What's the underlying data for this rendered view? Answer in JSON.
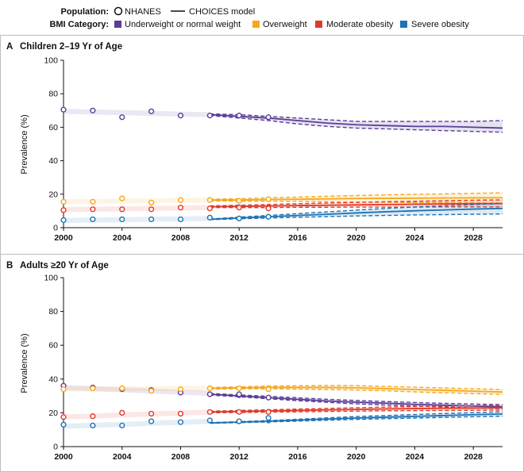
{
  "legend": {
    "population_label": "Population:",
    "nhanes_label": "NHANES",
    "model_label": "CHOICES model",
    "bmi_label": "BMI Category:",
    "categories": [
      {
        "name": "Underweight or normal weight",
        "color": "#5b3d99"
      },
      {
        "name": "Overweight",
        "color": "#f6a81c"
      },
      {
        "name": "Moderate obesity",
        "color": "#df3a2b"
      },
      {
        "name": "Severe obesity",
        "color": "#1f72b3"
      }
    ]
  },
  "chart_data": [
    {
      "type": "line",
      "panel": "A",
      "title": "Children 2–19 Yr of Age",
      "ylabel": "Prevalence (%)",
      "xlabel": "",
      "xlim": [
        2000,
        2030
      ],
      "ylim": [
        0,
        100
      ],
      "xticks": [
        2000,
        2004,
        2008,
        2012,
        2016,
        2020,
        2024,
        2028
      ],
      "yticks": [
        0,
        20,
        40,
        60,
        80,
        100
      ],
      "series": [
        {
          "name": "Underweight or normal weight",
          "color": "#5b3d99",
          "nhanes_x": [
            2000,
            2002,
            2004,
            2006,
            2008,
            2010,
            2012,
            2014
          ],
          "nhanes_y": [
            70.5,
            70,
            66,
            69.5,
            67,
            67,
            67,
            66
          ],
          "model_x": [
            2010,
            2012,
            2014,
            2016,
            2018,
            2020,
            2022,
            2024,
            2026,
            2028,
            2030
          ],
          "model_y": [
            67.5,
            66.5,
            65.5,
            64,
            62.5,
            61.5,
            61,
            60.5,
            60.5,
            60,
            59.5
          ],
          "model_lo": [
            67,
            65.5,
            64,
            62,
            60.5,
            59.5,
            59,
            58.5,
            58,
            57.5,
            57
          ],
          "model_hi": [
            68,
            67.5,
            66.5,
            65.5,
            64.5,
            63.5,
            63.5,
            63.5,
            63.5,
            63.5,
            64
          ],
          "past_trend": [
            69.5,
            67.5
          ]
        },
        {
          "name": "Overweight",
          "color": "#f6a81c",
          "nhanes_x": [
            2000,
            2002,
            2004,
            2006,
            2008,
            2010,
            2012,
            2014
          ],
          "nhanes_y": [
            15.5,
            15.5,
            17.5,
            15,
            16.5,
            16.5,
            16,
            17
          ],
          "model_x": [
            2010,
            2012,
            2014,
            2016,
            2018,
            2020,
            2022,
            2024,
            2026,
            2028,
            2030
          ],
          "model_y": [
            16.5,
            16.5,
            16.8,
            17,
            17.2,
            17.4,
            17.5,
            17.6,
            17.7,
            17.8,
            17.9
          ],
          "model_lo": [
            16,
            15.8,
            15.8,
            15.8,
            15.5,
            15.3,
            15.2,
            15,
            15,
            14.8,
            14.7
          ],
          "model_hi": [
            17,
            17.3,
            17.8,
            18.3,
            18.8,
            19.2,
            19.6,
            19.9,
            20.2,
            20.5,
            20.8
          ],
          "past_trend": [
            15.5,
            16.5
          ]
        },
        {
          "name": "Moderate obesity",
          "color": "#df3a2b",
          "nhanes_x": [
            2000,
            2002,
            2004,
            2006,
            2008,
            2010,
            2012,
            2014
          ],
          "nhanes_y": [
            10.5,
            11,
            11,
            11,
            12,
            11.5,
            12,
            11.5
          ],
          "model_x": [
            2010,
            2012,
            2014,
            2016,
            2018,
            2020,
            2022,
            2024,
            2026,
            2028,
            2030
          ],
          "model_y": [
            12.5,
            12.7,
            12.9,
            13.2,
            13.4,
            13.6,
            13.8,
            14,
            14.2,
            14.3,
            14.4
          ],
          "model_lo": [
            12,
            12,
            12,
            12.2,
            12.2,
            12.3,
            12.3,
            12.3,
            12.4,
            12.4,
            12.4
          ],
          "model_hi": [
            13,
            13.4,
            13.8,
            14.3,
            14.7,
            15.1,
            15.5,
            15.8,
            16.1,
            16.4,
            16.6
          ],
          "past_trend": [
            10.8,
            12
          ]
        },
        {
          "name": "Severe obesity",
          "color": "#1f72b3",
          "nhanes_x": [
            2000,
            2002,
            2004,
            2006,
            2008,
            2010,
            2012,
            2014
          ],
          "nhanes_y": [
            4.5,
            5,
            5,
            5,
            5,
            6,
            5.5,
            6.5
          ],
          "model_x": [
            2010,
            2012,
            2014,
            2016,
            2018,
            2020,
            2022,
            2024,
            2026,
            2028,
            2030
          ],
          "model_y": [
            5,
            5.8,
            6.5,
            7.3,
            8,
            8.8,
            9.5,
            10.1,
            10.6,
            11.1,
            11.5
          ],
          "model_lo": [
            4.8,
            5.3,
            5.8,
            6.2,
            6.6,
            7,
            7.3,
            7.6,
            7.8,
            8,
            8.2
          ],
          "model_hi": [
            5.2,
            6.3,
            7.3,
            8.4,
            9.4,
            10.5,
            11.5,
            12.4,
            13.1,
            13.8,
            14.4
          ],
          "past_trend": [
            4.3,
            5.5
          ]
        }
      ]
    },
    {
      "type": "line",
      "panel": "B",
      "title": "Adults ≥20 Yr of Age",
      "ylabel": "Prevalence (%)",
      "xlabel": "",
      "xlim": [
        2000,
        2030
      ],
      "ylim": [
        0,
        100
      ],
      "xticks": [
        2000,
        2004,
        2008,
        2012,
        2016,
        2020,
        2024,
        2028
      ],
      "yticks": [
        0,
        20,
        40,
        60,
        80,
        100
      ],
      "series": [
        {
          "name": "Underweight or normal weight",
          "color": "#5b3d99",
          "nhanes_x": [
            2000,
            2002,
            2004,
            2006,
            2008,
            2010,
            2012,
            2014
          ],
          "nhanes_y": [
            36,
            35,
            34,
            33.5,
            32,
            31,
            31,
            29
          ],
          "model_x": [
            2010,
            2012,
            2014,
            2016,
            2018,
            2020,
            2022,
            2024,
            2026,
            2028,
            2030
          ],
          "model_y": [
            31,
            30,
            29,
            28,
            27,
            26.3,
            25.7,
            25,
            24.5,
            24,
            23.5
          ],
          "model_lo": [
            30.5,
            29.5,
            28.3,
            27.2,
            26.2,
            25.3,
            24.6,
            24,
            23.4,
            22.9,
            22.5
          ],
          "model_hi": [
            31.5,
            30.6,
            29.8,
            28.9,
            28,
            27.3,
            26.7,
            26.1,
            25.6,
            25.2,
            24.8
          ],
          "past_trend": [
            35,
            31.5
          ]
        },
        {
          "name": "Overweight",
          "color": "#f6a81c",
          "nhanes_x": [
            2000,
            2002,
            2004,
            2006,
            2008,
            2010,
            2012,
            2014
          ],
          "nhanes_y": [
            34,
            34.5,
            34.5,
            33,
            34,
            34.5,
            34.5,
            34
          ],
          "model_x": [
            2010,
            2012,
            2014,
            2016,
            2018,
            2020,
            2022,
            2024,
            2026,
            2028,
            2030
          ],
          "model_y": [
            34.5,
            34.8,
            35,
            35,
            35,
            34.8,
            34.3,
            33.8,
            33.3,
            32.8,
            32.3
          ],
          "model_lo": [
            34,
            34.2,
            34.2,
            34,
            33.8,
            33.5,
            33,
            32.4,
            31.9,
            31.4,
            30.9
          ],
          "model_hi": [
            35,
            35.4,
            35.8,
            36,
            36.2,
            36.1,
            35.6,
            35.2,
            34.7,
            34.2,
            33.8
          ],
          "past_trend": [
            34,
            34.5
          ]
        },
        {
          "name": "Moderate obesity",
          "color": "#df3a2b",
          "nhanes_x": [
            2000,
            2002,
            2004,
            2006,
            2008,
            2010,
            2012,
            2014
          ],
          "nhanes_y": [
            17.5,
            18,
            20,
            19.5,
            19.5,
            20.5,
            20.5,
            20.5
          ],
          "model_x": [
            2010,
            2012,
            2014,
            2016,
            2018,
            2020,
            2022,
            2024,
            2026,
            2028,
            2030
          ],
          "model_y": [
            20.5,
            20.8,
            21.1,
            21.4,
            21.7,
            22,
            22.3,
            22.5,
            22.7,
            22.8,
            23
          ],
          "model_lo": [
            20,
            20.2,
            20.4,
            20.6,
            20.8,
            21,
            21.2,
            21.3,
            21.4,
            21.5,
            21.6
          ],
          "model_hi": [
            21,
            21.4,
            21.8,
            22.2,
            22.6,
            23,
            23.4,
            23.7,
            24,
            24.2,
            24.4
          ],
          "past_trend": [
            17.5,
            20.5
          ]
        },
        {
          "name": "Severe obesity",
          "color": "#1f72b3",
          "nhanes_x": [
            2000,
            2002,
            2004,
            2006,
            2008,
            2010,
            2012,
            2014
          ],
          "nhanes_y": [
            13,
            12.5,
            12.5,
            15,
            14.5,
            15.5,
            15,
            17
          ],
          "model_x": [
            2010,
            2012,
            2014,
            2016,
            2018,
            2020,
            2022,
            2024,
            2026,
            2028,
            2030
          ],
          "model_y": [
            14,
            14.5,
            15,
            15.7,
            16.3,
            16.9,
            17.4,
            17.9,
            18.4,
            18.9,
            19.3
          ],
          "model_lo": [
            13.8,
            14.2,
            14.6,
            15.1,
            15.6,
            16.1,
            16.5,
            16.9,
            17.3,
            17.7,
            18
          ],
          "model_hi": [
            14.2,
            14.8,
            15.4,
            16.2,
            17,
            17.8,
            18.4,
            19,
            19.6,
            20.1,
            20.6
          ],
          "past_trend": [
            12,
            15
          ]
        }
      ]
    }
  ]
}
